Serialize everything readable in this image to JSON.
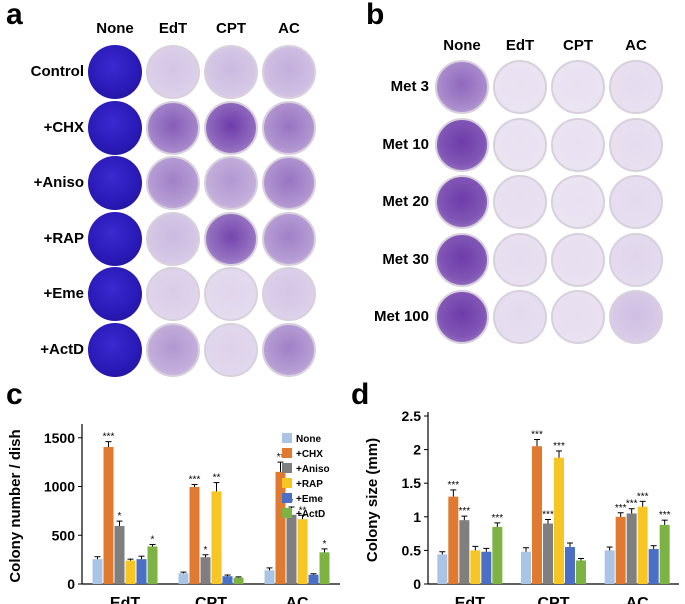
{
  "panel_a": {
    "letter": "a",
    "columns": [
      "None",
      "EdT",
      "CPT",
      "AC"
    ],
    "rows": [
      "Control",
      "+CHX",
      "+Aniso",
      "+RAP",
      "+Eme",
      "+ActD"
    ],
    "density": [
      [
        1.0,
        0.15,
        0.2,
        0.25
      ],
      [
        1.0,
        0.6,
        0.75,
        0.5
      ],
      [
        1.0,
        0.45,
        0.35,
        0.5
      ],
      [
        1.0,
        0.2,
        0.7,
        0.45
      ],
      [
        1.0,
        0.12,
        0.08,
        0.15
      ],
      [
        1.0,
        0.35,
        0.1,
        0.45
      ]
    ]
  },
  "panel_b": {
    "letter": "b",
    "columns": [
      "None",
      "EdT",
      "CPT",
      "AC"
    ],
    "rows": [
      "Met 3",
      "Met 10",
      "Met 20",
      "Met 30",
      "Met 100"
    ],
    "density": [
      [
        0.55,
        0.03,
        0.03,
        0.05
      ],
      [
        0.85,
        0.03,
        0.03,
        0.05
      ],
      [
        0.85,
        0.04,
        0.03,
        0.06
      ],
      [
        0.85,
        0.05,
        0.04,
        0.08
      ],
      [
        0.85,
        0.06,
        0.04,
        0.18
      ]
    ]
  },
  "chart_data": [
    {
      "panel": "c",
      "type": "bar",
      "ylabel": "Colony number / dish",
      "ylim": [
        0,
        1600
      ],
      "yticks": [
        0,
        500,
        1000,
        1500
      ],
      "categories": [
        "EdT",
        "CPT",
        "AC"
      ],
      "series": [
        {
          "name": "None",
          "color": "#a9c4e4",
          "values": [
            255,
            110,
            140
          ],
          "errors": [
            25,
            12,
            25
          ],
          "sig": [
            "",
            "",
            ""
          ]
        },
        {
          "name": "+CHX",
          "color": "#e07a30",
          "values": [
            1405,
            995,
            1150
          ],
          "errors": [
            55,
            25,
            100
          ],
          "sig": [
            "***",
            "***",
            "**"
          ]
        },
        {
          "name": "+Aniso",
          "color": "#7f7f7f",
          "values": [
            595,
            275,
            710
          ],
          "errors": [
            50,
            25,
            80
          ],
          "sig": [
            "*",
            "*",
            "*"
          ]
        },
        {
          "name": "+RAP",
          "color": "#f7c624",
          "values": [
            240,
            950,
            665
          ],
          "errors": [
            15,
            90,
            40
          ],
          "sig": [
            "",
            "**",
            "**"
          ]
        },
        {
          "name": "+Eme",
          "color": "#4a6fc4",
          "values": [
            255,
            80,
            95
          ],
          "errors": [
            30,
            12,
            10
          ],
          "sig": [
            "",
            "",
            ""
          ]
        },
        {
          "name": "+ActD",
          "color": "#7cb342",
          "values": [
            385,
            65,
            325
          ],
          "errors": [
            20,
            8,
            35
          ],
          "sig": [
            "*",
            "",
            "*"
          ]
        }
      ],
      "legend": "top-right"
    },
    {
      "panel": "d",
      "type": "bar",
      "ylabel": "Colony size (mm)",
      "ylim": [
        0,
        2.5
      ],
      "yticks": [
        "0",
        "0.5",
        "1",
        "1.5",
        "2",
        "2.5"
      ],
      "categories": [
        "EdT",
        "CPT",
        "AC"
      ],
      "series": [
        {
          "name": "None",
          "color": "#a9c4e4",
          "values": [
            0.44,
            0.48,
            0.5
          ],
          "errors": [
            0.04,
            0.06,
            0.05
          ],
          "sig": [
            "",
            "",
            ""
          ]
        },
        {
          "name": "+CHX",
          "color": "#e07a30",
          "values": [
            1.3,
            2.05,
            1.0
          ],
          "errors": [
            0.1,
            0.1,
            0.06
          ],
          "sig": [
            "***",
            "***",
            "***"
          ]
        },
        {
          "name": "+Aniso",
          "color": "#7f7f7f",
          "values": [
            0.95,
            0.9,
            1.05
          ],
          "errors": [
            0.06,
            0.06,
            0.07
          ],
          "sig": [
            "***",
            "***",
            "***"
          ]
        },
        {
          "name": "+RAP",
          "color": "#f7c624",
          "values": [
            0.5,
            1.88,
            1.15
          ],
          "errors": [
            0.06,
            0.1,
            0.08
          ],
          "sig": [
            "",
            "***",
            "***"
          ]
        },
        {
          "name": "+Eme",
          "color": "#4a6fc4",
          "values": [
            0.48,
            0.55,
            0.52
          ],
          "errors": [
            0.05,
            0.06,
            0.05
          ],
          "sig": [
            "",
            "",
            ""
          ]
        },
        {
          "name": "+ActD",
          "color": "#7cb342",
          "values": [
            0.85,
            0.35,
            0.88
          ],
          "errors": [
            0.06,
            0.03,
            0.07
          ],
          "sig": [
            "***",
            "",
            "***"
          ]
        }
      ]
    }
  ]
}
